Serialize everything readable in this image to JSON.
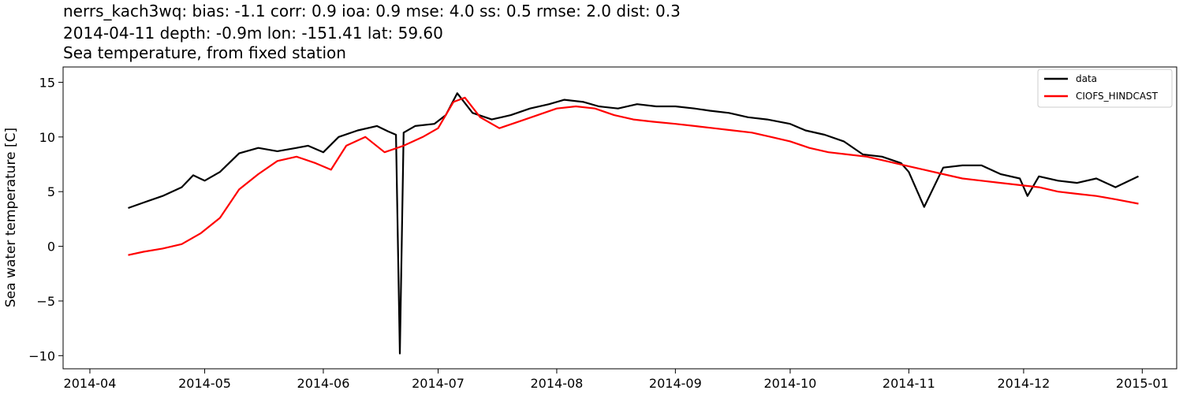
{
  "title": {
    "line1": "nerrs_kach3wq: bias: -1.1  corr: 0.9  ioa: 0.9  mse: 4.0  ss: 0.5  rmse: 2.0  dist: 0.3",
    "line2": "2014-04-11 depth: -0.9m lon: -151.41 lat: 59.60",
    "line3": "Sea temperature, from fixed station"
  },
  "chart_data": {
    "type": "line",
    "xlabel": "",
    "ylabel": "Sea water temperature [C]",
    "xlim": [
      "2014-03-25",
      "2015-01-10"
    ],
    "ylim": [
      -11.2,
      16.4
    ],
    "x_ticks": [
      "2014-04",
      "2014-05",
      "2014-06",
      "2014-07",
      "2014-08",
      "2014-09",
      "2014-10",
      "2014-11",
      "2014-12",
      "2015-01"
    ],
    "y_ticks": [
      -10,
      -5,
      0,
      5,
      10,
      15
    ],
    "grid": false,
    "legend_position": "top-right",
    "series": [
      {
        "name": "data",
        "color": "#000000",
        "x": [
          "2014-04-11",
          "2014-04-15",
          "2014-04-20",
          "2014-04-25",
          "2014-04-28",
          "2014-05-01",
          "2014-05-05",
          "2014-05-10",
          "2014-05-15",
          "2014-05-20",
          "2014-05-25",
          "2014-05-28",
          "2014-06-01",
          "2014-06-05",
          "2014-06-10",
          "2014-06-15",
          "2014-06-18",
          "2014-06-20",
          "2014-06-21",
          "2014-06-22",
          "2014-06-25",
          "2014-06-30",
          "2014-07-03",
          "2014-07-06",
          "2014-07-10",
          "2014-07-15",
          "2014-07-20",
          "2014-07-25",
          "2014-07-30",
          "2014-08-03",
          "2014-08-08",
          "2014-08-12",
          "2014-08-17",
          "2014-08-22",
          "2014-08-27",
          "2014-09-01",
          "2014-09-06",
          "2014-09-10",
          "2014-09-15",
          "2014-09-20",
          "2014-09-25",
          "2014-10-01",
          "2014-10-05",
          "2014-10-10",
          "2014-10-15",
          "2014-10-20",
          "2014-10-25",
          "2014-10-30",
          "2014-11-01",
          "2014-11-05",
          "2014-11-10",
          "2014-11-15",
          "2014-11-20",
          "2014-11-25",
          "2014-11-30",
          "2014-12-02",
          "2014-12-05",
          "2014-12-10",
          "2014-12-15",
          "2014-12-20",
          "2014-12-25",
          "2014-12-31"
        ],
        "y": [
          3.5,
          4.0,
          4.6,
          5.4,
          6.5,
          6.0,
          6.8,
          8.5,
          9.0,
          8.7,
          9.0,
          9.2,
          8.6,
          10.0,
          10.6,
          11.0,
          10.5,
          10.2,
          -9.8,
          10.4,
          11.0,
          11.2,
          12.0,
          14.0,
          12.2,
          11.6,
          12.0,
          12.6,
          13.0,
          13.4,
          13.2,
          12.8,
          12.6,
          13.0,
          12.8,
          12.8,
          12.6,
          12.4,
          12.2,
          11.8,
          11.6,
          11.2,
          10.6,
          10.2,
          9.6,
          8.4,
          8.2,
          7.6,
          6.8,
          3.6,
          7.2,
          7.4,
          7.4,
          6.6,
          6.2,
          4.6,
          6.4,
          6.0,
          5.8,
          6.2,
          5.4,
          6.4
        ]
      },
      {
        "name": "CIOFS_HINDCAST",
        "color": "#ff0000",
        "x": [
          "2014-04-11",
          "2014-04-15",
          "2014-04-20",
          "2014-04-25",
          "2014-04-30",
          "2014-05-05",
          "2014-05-10",
          "2014-05-15",
          "2014-05-20",
          "2014-05-25",
          "2014-05-30",
          "2014-06-03",
          "2014-06-07",
          "2014-06-12",
          "2014-06-17",
          "2014-06-22",
          "2014-06-27",
          "2014-07-01",
          "2014-07-05",
          "2014-07-08",
          "2014-07-12",
          "2014-07-17",
          "2014-07-22",
          "2014-07-27",
          "2014-08-01",
          "2014-08-06",
          "2014-08-11",
          "2014-08-16",
          "2014-08-21",
          "2014-08-26",
          "2014-09-01",
          "2014-09-06",
          "2014-09-11",
          "2014-09-16",
          "2014-09-21",
          "2014-09-26",
          "2014-10-01",
          "2014-10-06",
          "2014-10-11",
          "2014-10-16",
          "2014-10-21",
          "2014-10-26",
          "2014-10-31",
          "2014-11-05",
          "2014-11-10",
          "2014-11-15",
          "2014-11-20",
          "2014-11-25",
          "2014-11-30",
          "2014-12-05",
          "2014-12-10",
          "2014-12-15",
          "2014-12-20",
          "2014-12-25",
          "2014-12-31"
        ],
        "y": [
          -0.8,
          -0.5,
          -0.2,
          0.2,
          1.2,
          2.6,
          5.2,
          6.6,
          7.8,
          8.2,
          7.6,
          7.0,
          9.2,
          10.0,
          8.6,
          9.2,
          10.0,
          10.8,
          13.2,
          13.6,
          11.8,
          10.8,
          11.4,
          12.0,
          12.6,
          12.8,
          12.6,
          12.0,
          11.6,
          11.4,
          11.2,
          11.0,
          10.8,
          10.6,
          10.4,
          10.0,
          9.6,
          9.0,
          8.6,
          8.4,
          8.2,
          7.8,
          7.4,
          7.0,
          6.6,
          6.2,
          6.0,
          5.8,
          5.6,
          5.4,
          5.0,
          4.8,
          4.6,
          4.3,
          3.9
        ]
      }
    ]
  }
}
